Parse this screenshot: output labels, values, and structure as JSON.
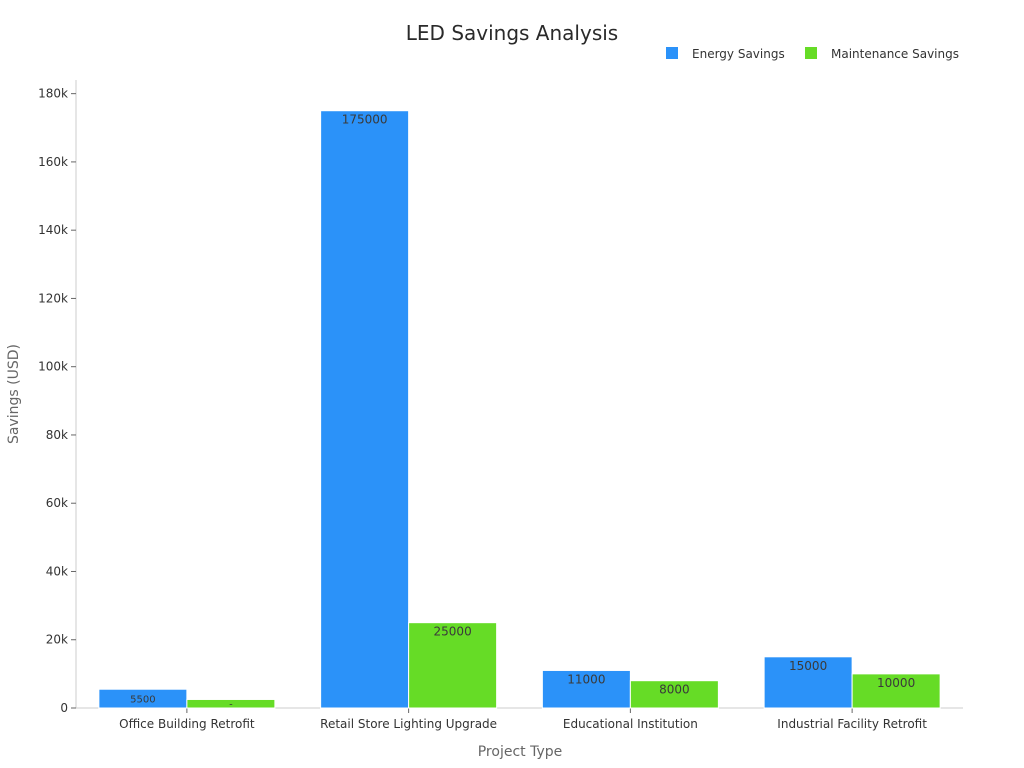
{
  "chart_data": {
    "type": "bar",
    "title": "LED Savings Analysis",
    "xlabel": "Project Type",
    "ylabel": "Savings (USD)",
    "categories": [
      "Office Building Retrofit",
      "Retail Store Lighting Upgrade",
      "Educational Institution",
      "Industrial Facility Retrofit"
    ],
    "series": [
      {
        "name": "Energy Savings",
        "color": "#2b92f9",
        "values": [
          5500,
          175000,
          11000,
          15000
        ],
        "labels": [
          "5500",
          "175000",
          "11000",
          "15000"
        ]
      },
      {
        "name": "Maintenance Savings",
        "color": "#66dc26",
        "values": [
          2500,
          25000,
          8000,
          10000
        ],
        "labels": [
          "-",
          "25000",
          "8000",
          "10000"
        ]
      }
    ],
    "ylim": [
      0,
      184000
    ],
    "yticks": [
      0,
      20000,
      40000,
      60000,
      80000,
      100000,
      120000,
      140000,
      160000,
      180000
    ],
    "ytick_labels": [
      "0",
      "20k",
      "40k",
      "60k",
      "80k",
      "100k",
      "120k",
      "140k",
      "160k",
      "180k"
    ],
    "legend_position": "top-right",
    "grid": false
  }
}
